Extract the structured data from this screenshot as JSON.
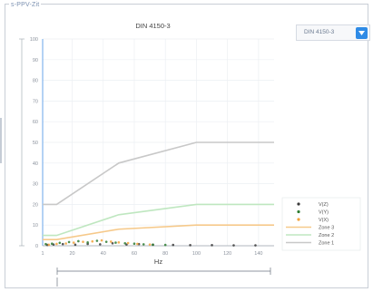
{
  "panel": {
    "title": "s-PPV-Zit"
  },
  "standard_select": {
    "value": "DIN 4150-3"
  },
  "colors": {
    "accent": "#2f8be6",
    "zone1": "#c8c8c8",
    "zone2": "#bfe7c0",
    "zone3": "#f6c98a",
    "vx": "#3a3a3a",
    "vy": "#2e7d32",
    "vz": "#f2a23a"
  },
  "chart_data": {
    "type": "line",
    "title": "DIN 4150-3",
    "xlabel": "Hz",
    "ylabel": "",
    "xlim": [
      1,
      150
    ],
    "ylim": [
      0,
      100
    ],
    "xticks": [
      "1",
      "20",
      "40",
      "60",
      "80",
      "100",
      "120",
      "140"
    ],
    "yticks": [
      "0",
      "10",
      "20",
      "30",
      "40",
      "50",
      "60",
      "70",
      "80",
      "90",
      "100"
    ],
    "grid": true,
    "legend_position": "bottom-right",
    "legend_entries": [
      "V(Z)",
      "V(Y)",
      "V(X)",
      "Zone 3",
      "Zone 2",
      "Zone 1"
    ],
    "series": [
      {
        "name": "Zone 1",
        "kind": "line",
        "color": "#c8c8c8",
        "x": [
          1,
          10,
          50,
          100,
          150
        ],
        "y": [
          20,
          20,
          40,
          50,
          50
        ]
      },
      {
        "name": "Zone 2",
        "kind": "line",
        "color": "#bfe7c0",
        "x": [
          1,
          10,
          50,
          100,
          150
        ],
        "y": [
          5,
          5,
          15,
          20,
          20
        ]
      },
      {
        "name": "Zone 3",
        "kind": "line",
        "color": "#f6c98a",
        "x": [
          1,
          10,
          50,
          100,
          150
        ],
        "y": [
          3,
          3,
          8,
          10,
          10
        ]
      },
      {
        "name": "V(Z)",
        "kind": "scatter",
        "color": "#3a3a3a",
        "x": [
          4,
          8,
          14,
          22,
          30,
          38,
          46,
          55,
          63,
          72,
          85,
          96,
          110,
          124,
          138
        ],
        "y": [
          0.4,
          0.6,
          0.8,
          0.5,
          0.9,
          0.7,
          1.2,
          0.6,
          0.8,
          0.5,
          0.4,
          0.3,
          0.3,
          0.2,
          0.2
        ]
      },
      {
        "name": "V(Y)",
        "kind": "scatter",
        "color": "#2e7d32",
        "x": [
          3,
          7,
          12,
          18,
          24,
          30,
          36,
          42,
          48,
          54,
          60,
          66,
          72,
          80
        ],
        "y": [
          0.8,
          1.0,
          1.4,
          1.8,
          2.2,
          1.6,
          2.4,
          1.9,
          1.5,
          1.2,
          1.0,
          0.7,
          0.5,
          0.4
        ]
      },
      {
        "name": "V(X)",
        "kind": "scatter",
        "color": "#f2a23a",
        "x": [
          5,
          10,
          16,
          21,
          27,
          33,
          39,
          45,
          50,
          56,
          62,
          70
        ],
        "y": [
          0.5,
          0.9,
          1.1,
          1.5,
          1.9,
          2.1,
          2.6,
          2.0,
          1.6,
          1.3,
          0.9,
          0.6
        ]
      }
    ]
  }
}
